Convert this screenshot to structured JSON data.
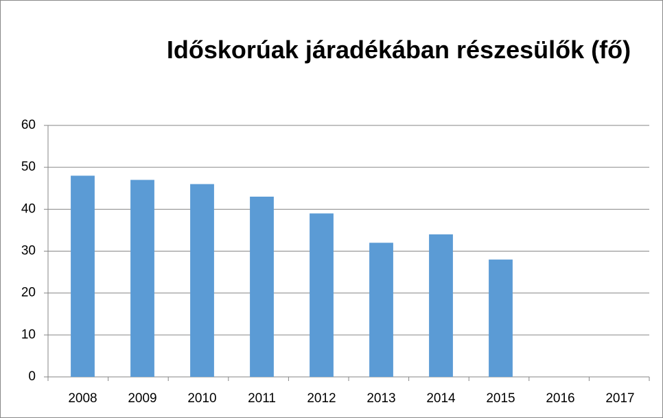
{
  "chart_data": {
    "type": "bar",
    "title": "Időskorúak járadékában részesülők (fő)",
    "categories": [
      "2008",
      "2009",
      "2010",
      "2011",
      "2012",
      "2013",
      "2014",
      "2015",
      "2016",
      "2017"
    ],
    "values": [
      48,
      47,
      46,
      43,
      39,
      32,
      34,
      28,
      null,
      null
    ],
    "color": "#5b9bd5",
    "ylim": [
      0,
      60
    ],
    "yticks": [
      0,
      10,
      20,
      30,
      40,
      50,
      60
    ],
    "grid": true
  }
}
